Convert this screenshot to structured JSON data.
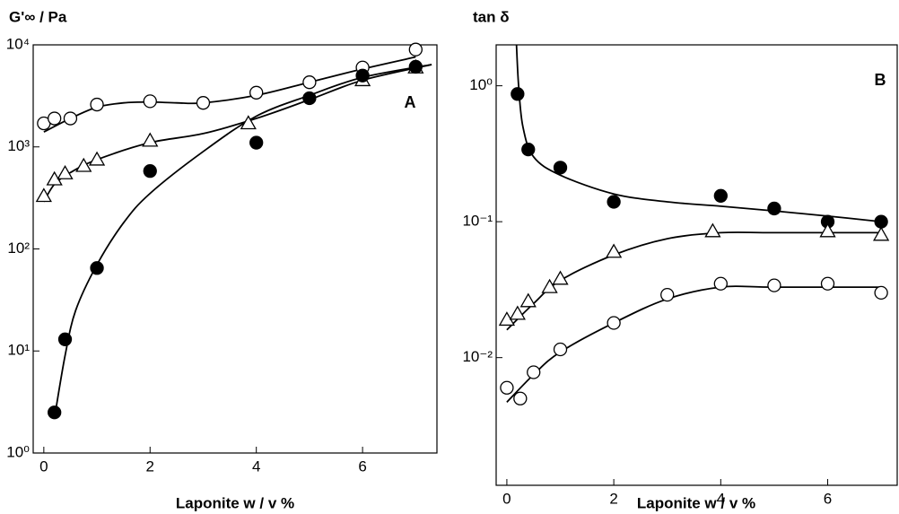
{
  "chart_data": [
    {
      "type": "scatter",
      "y_label": "G'∞ /  Pa",
      "x_label": "Laponite w / v %",
      "panel_label": "A",
      "log_y": true,
      "xlim": [
        -0.2,
        7.4
      ],
      "ylim": [
        1,
        10000
      ],
      "xticks": [
        0,
        2,
        4,
        6
      ],
      "yticks": [
        {
          "value": 1,
          "label": "10⁰"
        },
        {
          "value": 10,
          "label": "10¹"
        },
        {
          "value": 100,
          "label": "10²"
        },
        {
          "value": 1000,
          "label": "10³"
        },
        {
          "value": 10000,
          "label": "10⁴"
        }
      ],
      "series": [
        {
          "marker": "circle-open",
          "color": "#000000",
          "x": [
            0,
            0.2,
            0.5,
            1,
            2,
            3,
            4,
            5,
            6,
            7
          ],
          "values": [
            1700,
            1900,
            1900,
            2600,
            2800,
            2700,
            3400,
            4300,
            6000,
            9000
          ]
        },
        {
          "marker": "triangle-open",
          "color": "#000000",
          "x": [
            0,
            0.2,
            0.4,
            0.75,
            1,
            2,
            3.85,
            6,
            7
          ],
          "values": [
            330,
            480,
            550,
            650,
            750,
            1150,
            1700,
            4500,
            6000
          ]
        },
        {
          "marker": "circle-filled",
          "color": "#000000",
          "x": [
            0.2,
            0.4,
            1,
            2,
            4,
            5,
            6,
            7
          ],
          "values": [
            2.5,
            13,
            65,
            580,
            1100,
            3000,
            5000,
            6100
          ]
        },
        {
          "marker": "line",
          "color": "#000000",
          "x": [
            0,
            0.5,
            1,
            1.5,
            2,
            2.5,
            3,
            4,
            5,
            6,
            7
          ],
          "values": [
            1400,
            1900,
            2450,
            2700,
            2750,
            2700,
            2700,
            3200,
            4300,
            5800,
            7600
          ]
        },
        {
          "marker": "line",
          "color": "#000000",
          "x": [
            0,
            0.2,
            0.5,
            1,
            2,
            3,
            4,
            5,
            6,
            7.3
          ],
          "values": [
            290,
            430,
            560,
            750,
            1100,
            1350,
            1900,
            2900,
            4500,
            6400
          ]
        },
        {
          "marker": "line",
          "color": "#000000",
          "x": [
            0.2,
            0.4,
            0.6,
            1,
            1.5,
            2,
            3,
            4,
            5,
            6,
            7.3
          ],
          "values": [
            2.2,
            9,
            25,
            70,
            180,
            350,
            900,
            2000,
            3200,
            4800,
            6400
          ]
        }
      ]
    },
    {
      "type": "scatter",
      "y_label": "tan δ",
      "x_label": "Laponite w / v %",
      "panel_label": "B",
      "log_y": true,
      "xlim": [
        -0.2,
        7.3
      ],
      "ylim": [
        0.00115,
        2
      ],
      "xticks": [
        0,
        2,
        4,
        6
      ],
      "yticks": [
        {
          "value": 0.01,
          "label": "10⁻²"
        },
        {
          "value": 0.1,
          "label": "10⁻¹"
        },
        {
          "value": 1,
          "label": "10⁰"
        }
      ],
      "series": [
        {
          "marker": "circle-filled",
          "color": "#000000",
          "x": [
            0.2,
            0.4,
            1,
            2,
            4,
            5,
            6,
            7
          ],
          "values": [
            0.87,
            0.34,
            0.25,
            0.14,
            0.155,
            0.125,
            0.1,
            0.1
          ]
        },
        {
          "marker": "triangle-open",
          "color": "#000000",
          "x": [
            0,
            0.2,
            0.4,
            0.8,
            1,
            2,
            3.85,
            6,
            7
          ],
          "values": [
            0.019,
            0.021,
            0.026,
            0.033,
            0.038,
            0.06,
            0.085,
            0.085,
            0.08
          ]
        },
        {
          "marker": "circle-open",
          "color": "#000000",
          "x": [
            0,
            0.25,
            0.5,
            1,
            2,
            3,
            4,
            5,
            6,
            7
          ],
          "values": [
            0.006,
            0.005,
            0.0078,
            0.0115,
            0.018,
            0.029,
            0.035,
            0.034,
            0.035,
            0.03
          ]
        },
        {
          "marker": "line",
          "color": "#000000",
          "x": [
            0.18,
            0.22,
            0.3,
            0.5,
            1,
            2,
            3,
            4,
            5,
            6,
            7
          ],
          "values": [
            2,
            1,
            0.5,
            0.3,
            0.22,
            0.16,
            0.14,
            0.13,
            0.12,
            0.11,
            0.1
          ]
        },
        {
          "marker": "line",
          "color": "#000000",
          "x": [
            0,
            0.5,
            1,
            2,
            3,
            4,
            5,
            7
          ],
          "values": [
            0.016,
            0.025,
            0.037,
            0.057,
            0.075,
            0.083,
            0.083,
            0.083
          ]
        },
        {
          "marker": "line",
          "color": "#000000",
          "x": [
            0,
            0.5,
            1,
            2,
            3,
            4,
            5,
            7
          ],
          "values": [
            0.0047,
            0.0075,
            0.011,
            0.018,
            0.027,
            0.033,
            0.033,
            0.033
          ]
        }
      ]
    }
  ]
}
